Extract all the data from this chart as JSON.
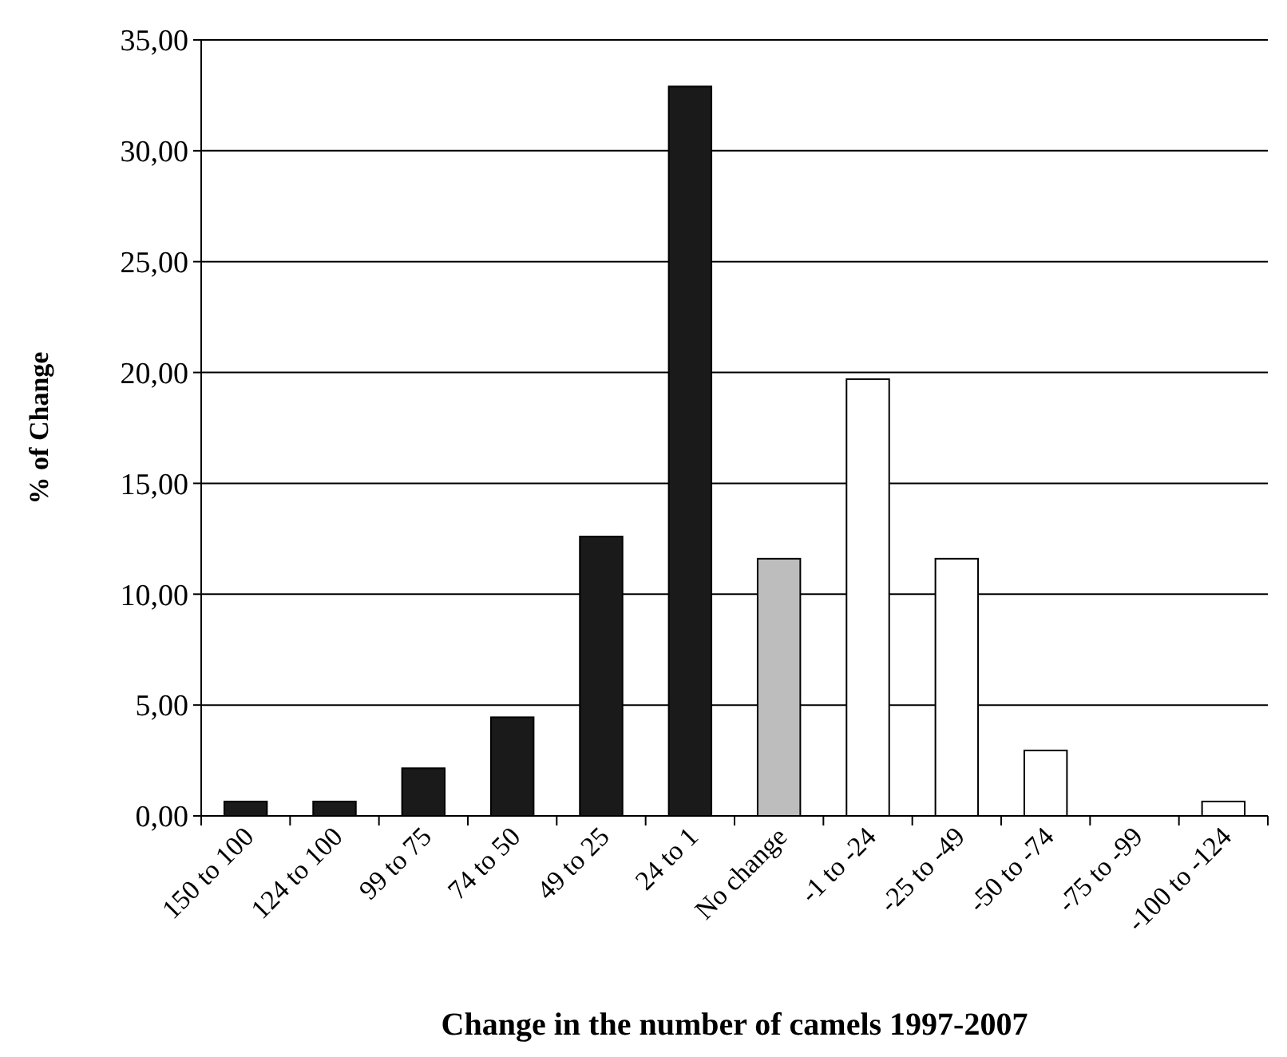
{
  "chart_data": {
    "type": "bar",
    "xlabel": "Change in the number of camels 1997-2007",
    "ylabel": "% of Change",
    "categories": [
      "150 to 100",
      "124 to 100",
      "99 to 75",
      "74 to 50",
      "49 to 25",
      "24 to 1",
      "No change",
      "-1 to -24",
      "-25 to -49",
      "-50 to -74",
      "-75 to -99",
      "-100 to -124"
    ],
    "values": [
      0.65,
      0.65,
      2.15,
      4.45,
      12.6,
      32.9,
      11.6,
      19.7,
      11.6,
      2.95,
      0,
      0.65
    ],
    "colors": [
      "#1a1a1a",
      "#1a1a1a",
      "#1a1a1a",
      "#1a1a1a",
      "#1a1a1a",
      "#1a1a1a",
      "#bdbdbd",
      "#ffffff",
      "#ffffff",
      "#ffffff",
      "#ffffff",
      "#ffffff"
    ],
    "ylim": [
      0,
      35
    ],
    "yticks": [
      {
        "value": 0,
        "label": "0,00"
      },
      {
        "value": 5,
        "label": "5,00"
      },
      {
        "value": 10,
        "label": "10,00"
      },
      {
        "value": 15,
        "label": "15,00"
      },
      {
        "value": 20,
        "label": "20,00"
      },
      {
        "value": 25,
        "label": "25,00"
      },
      {
        "value": 30,
        "label": "30,00"
      },
      {
        "value": 35,
        "label": "35,00"
      }
    ],
    "grid": "y"
  }
}
